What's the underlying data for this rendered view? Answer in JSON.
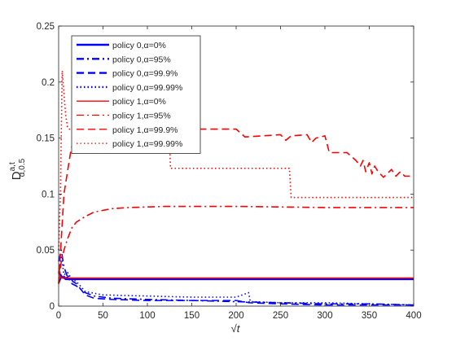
{
  "chart_data": {
    "type": "line",
    "xlabel": "√t",
    "ylabel": "D",
    "ylabel_sup": "a,t",
    "ylabel_sub": "α,0.5",
    "xlim": [
      0,
      400
    ],
    "ylim": [
      0,
      0.25
    ],
    "xticks": [
      "0",
      "50",
      "100",
      "150",
      "200",
      "250",
      "300",
      "350",
      "400"
    ],
    "yticks": [
      "0",
      "0.05",
      "0.1",
      "0.15",
      "0.2",
      "0.25"
    ],
    "grid": false,
    "legend_position": "top-left",
    "colors": {
      "policy0": "#0000ff",
      "policy1": "#ff0000"
    },
    "series": [
      {
        "name": "policy 0,α=0%",
        "color": "#0000ff",
        "style": "solid",
        "x": [
          0,
          2,
          4,
          6,
          8,
          400
        ],
        "y": [
          0.03,
          0.028,
          0.026,
          0.025,
          0.024,
          0.024
        ]
      },
      {
        "name": "policy 0,α=95%",
        "color": "#0000ff",
        "style": "dashdot",
        "x": [
          0,
          3,
          6,
          10,
          15,
          20,
          30,
          40,
          60,
          100,
          150,
          200,
          250,
          300,
          350,
          400
        ],
        "y": [
          0.04,
          0.05,
          0.035,
          0.026,
          0.02,
          0.018,
          0.012,
          0.009,
          0.007,
          0.006,
          0.005,
          0.004,
          0.003,
          0.002,
          0.002,
          0.001
        ]
      },
      {
        "name": "policy 0,α=99.9%",
        "color": "#0000ff",
        "style": "dashed",
        "x": [
          0,
          4,
          8,
          12,
          16,
          20,
          25,
          30,
          40,
          60,
          100,
          150,
          200,
          215,
          250,
          300,
          350,
          400
        ],
        "y": [
          0.02,
          0.028,
          0.025,
          0.027,
          0.022,
          0.02,
          0.015,
          0.01,
          0.007,
          0.006,
          0.005,
          0.005,
          0.005,
          0.003,
          0.002,
          0.001,
          0.001,
          0.001
        ]
      },
      {
        "name": "policy 0,α=99.99%",
        "color": "#0000ff",
        "style": "dotted",
        "x": [
          0,
          3,
          6,
          10,
          15,
          20,
          30,
          50,
          100,
          150,
          200,
          214,
          216,
          250,
          300,
          350,
          400
        ],
        "y": [
          0.03,
          0.045,
          0.028,
          0.03,
          0.024,
          0.022,
          0.013,
          0.01,
          0.009,
          0.008,
          0.008,
          0.012,
          0.004,
          0.003,
          0.003,
          0.002,
          0.001
        ]
      },
      {
        "name": "policy 1,α=0%",
        "color": "#ff0000",
        "style": "solid",
        "x": [
          0,
          2,
          4,
          400
        ],
        "y": [
          0.03,
          0.026,
          0.025,
          0.025
        ]
      },
      {
        "name": "policy 1,α=95%",
        "color": "#ff0000",
        "style": "dashdot",
        "x": [
          0,
          3,
          6,
          10,
          15,
          20,
          30,
          40,
          60,
          80,
          120,
          200,
          300,
          400
        ],
        "y": [
          0.02,
          0.04,
          0.05,
          0.06,
          0.07,
          0.075,
          0.08,
          0.084,
          0.087,
          0.088,
          0.089,
          0.089,
          0.088,
          0.088
        ]
      },
      {
        "name": "policy 1,α=99.9%",
        "color": "#ff0000",
        "style": "dashed",
        "x": [
          0,
          3,
          6,
          10,
          14,
          18,
          25,
          50,
          100,
          150,
          200,
          210,
          250,
          256,
          262,
          280,
          285,
          290,
          300,
          305,
          325,
          335,
          340,
          343,
          346,
          350,
          353,
          356,
          360,
          366,
          370,
          375,
          380,
          385,
          390,
          400
        ],
        "y": [
          0.02,
          0.06,
          0.1,
          0.12,
          0.14,
          0.15,
          0.155,
          0.157,
          0.158,
          0.158,
          0.158,
          0.151,
          0.153,
          0.148,
          0.152,
          0.153,
          0.146,
          0.15,
          0.152,
          0.137,
          0.137,
          0.13,
          0.125,
          0.13,
          0.12,
          0.128,
          0.118,
          0.125,
          0.12,
          0.115,
          0.118,
          0.122,
          0.116,
          0.12,
          0.116,
          0.116
        ]
      },
      {
        "name": "policy 1,α=99.99%",
        "color": "#ff0000",
        "style": "dotted",
        "x": [
          0,
          2,
          4,
          6,
          8,
          10,
          12,
          20,
          50,
          100,
          125,
          126,
          200,
          260,
          262,
          300,
          400
        ],
        "y": [
          0.05,
          0.1,
          0.21,
          0.19,
          0.17,
          0.16,
          0.158,
          0.157,
          0.155,
          0.15,
          0.15,
          0.123,
          0.123,
          0.123,
          0.097,
          0.097,
          0.097
        ]
      }
    ]
  }
}
